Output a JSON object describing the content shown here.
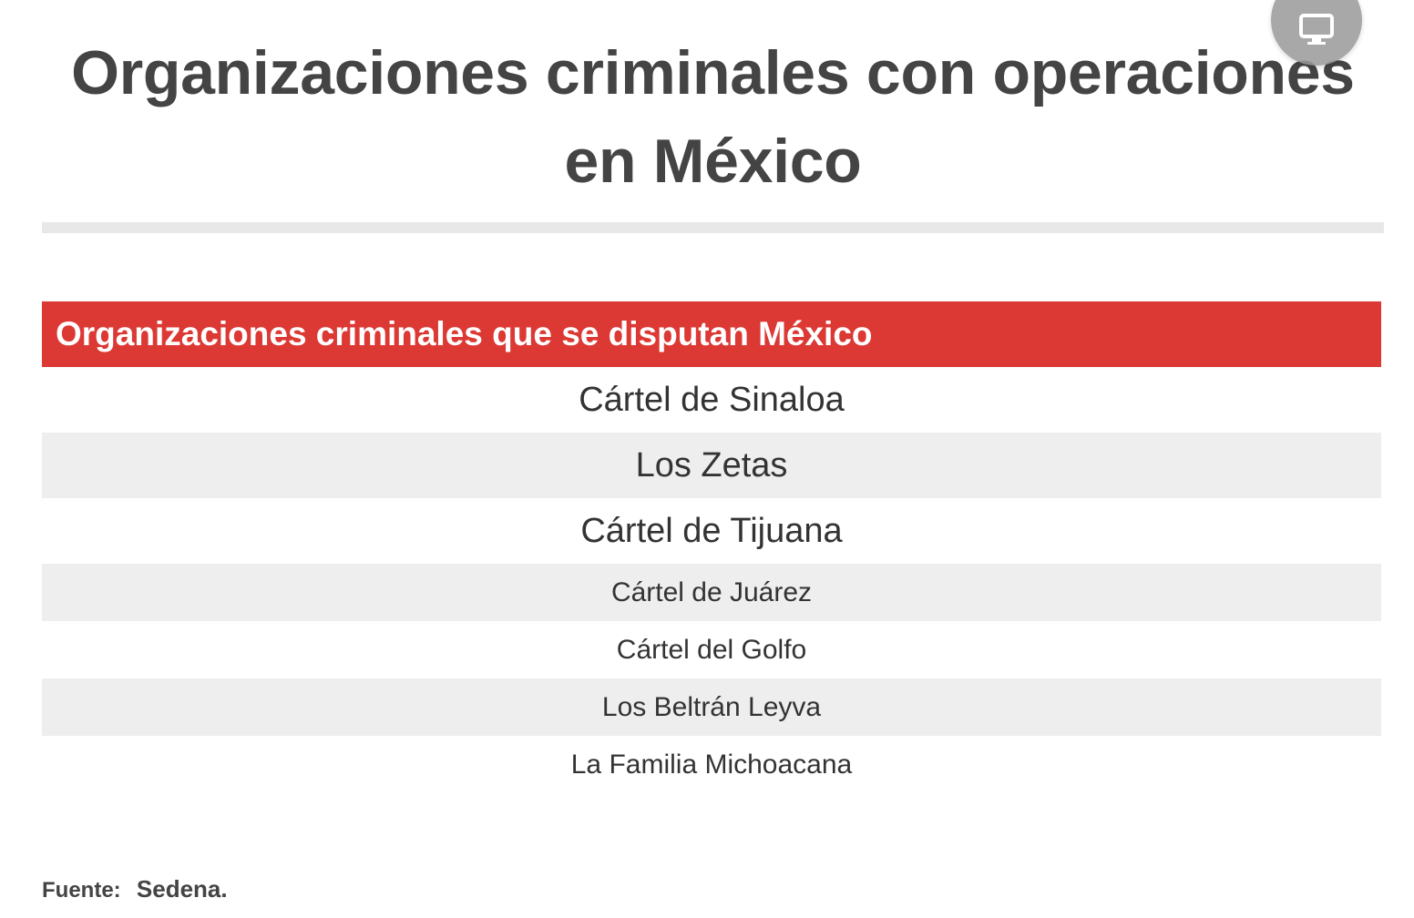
{
  "article": {
    "title": "Organizaciones criminales con operaciones en México"
  },
  "table": {
    "header": "Organizaciones criminales que se disputan México",
    "rows": [
      "Cártel de Sinaloa",
      "Los Zetas",
      "Cártel de Tijuana",
      "Cártel de Juárez",
      "Cártel del Golfo",
      "Los Beltrán Leyva",
      "La Familia Michoacana"
    ]
  },
  "source": {
    "label": "Fuente:",
    "value": "Sedena."
  },
  "floating_button": {
    "icon": "desktop-monitor-icon",
    "color": "#9a9a9a"
  },
  "colors": {
    "header_bg": "#dc3834",
    "header_text": "#ffffff",
    "row_alt_bg": "#eeeeee",
    "title_text": "#444444"
  }
}
